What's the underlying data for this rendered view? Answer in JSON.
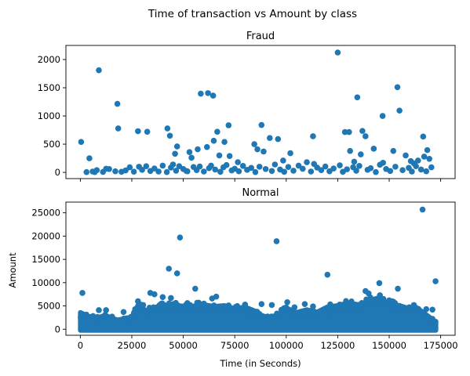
{
  "figure": {
    "suptitle": "Time of transaction vs Amount by class"
  },
  "colors": {
    "marker": "#1f77b4",
    "axes": "#000000",
    "background": "#ffffff"
  },
  "chart_data": [
    {
      "type": "scatter",
      "title": "Fraud",
      "xlabel": "",
      "ylabel": "",
      "xlim": [
        -7000,
        182000
      ],
      "ylim": [
        -110,
        2250
      ],
      "xticks": [
        0,
        25000,
        50000,
        75000,
        100000,
        125000,
        150000,
        175000
      ],
      "xtick_labels_visible": false,
      "yticks": [
        0,
        500,
        1000,
        1500,
        2000
      ],
      "ytick_labels": [
        "0",
        "500",
        "1000",
        "1500",
        "2000"
      ],
      "grid": false,
      "legend": "none",
      "series": [
        {
          "marker": "circle",
          "x": [
            400,
            9000,
            18000,
            18400,
            125000,
            154000,
            134500,
            155000,
            146800,
            58500,
            62000,
            64500,
            42300,
            43500,
            46000,
            66500,
            72000,
            88000,
            92000,
            96000,
            113000,
            137000,
            138500,
            128500,
            130500,
            166500,
            168500,
            32500,
            28000,
            4400,
            70000,
            47000,
            53000,
            61500,
            64800,
            54000,
            57000,
            67500,
            72500,
            84500,
            86000,
            89000,
            102000,
            110000,
            131000,
            136200,
            142500,
            152000,
            158000,
            162000,
            164000,
            167000,
            169500,
            3000,
            6000,
            8000,
            11000,
            14000,
            17000,
            20000,
            22000,
            24000,
            26000,
            28500,
            30000,
            32000,
            34000,
            36000,
            38000,
            40000,
            42000,
            44000,
            46500,
            48000,
            50000,
            52000,
            55000,
            56500,
            58000,
            60000,
            62500,
            63500,
            65500,
            68000,
            69500,
            71000,
            73500,
            75000,
            77000,
            79000,
            81000,
            83000,
            85000,
            87000,
            90000,
            93000,
            94500,
            97000,
            99000,
            101000,
            103500,
            106000,
            108000,
            112000,
            115000,
            117000,
            119000,
            121000,
            123000,
            126000,
            127500,
            129500,
            132500,
            134000,
            135500,
            139500,
            141000,
            143500,
            145500,
            148500,
            150500,
            153000,
            156500,
            159500,
            161000,
            163000,
            165500,
            168000,
            170500,
            7000,
            12500,
            45000,
            51500,
            76500,
            98500,
            113500,
            133000,
            147000,
            160500
          ],
          "y": [
            540,
            1810,
            1215,
            780,
            2125,
            1510,
            1330,
            1095,
            1000,
            1395,
            1405,
            1360,
            780,
            650,
            330,
            720,
            835,
            840,
            610,
            590,
            640,
            735,
            640,
            715,
            715,
            635,
            395,
            720,
            730,
            250,
            540,
            460,
            360,
            450,
            560,
            260,
            410,
            300,
            290,
            500,
            410,
            370,
            340,
            180,
            380,
            320,
            420,
            380,
            300,
            160,
            210,
            280,
            240,
            5,
            15,
            40,
            8,
            60,
            20,
            10,
            35,
            90,
            12,
            100,
            45,
            110,
            25,
            70,
            15,
            120,
            5,
            85,
            30,
            110,
            60,
            20,
            95,
            40,
            105,
            15,
            75,
            120,
            50,
            10,
            90,
            130,
            35,
            65,
            20,
            115,
            45,
            80,
            5,
            100,
            60,
            25,
            140,
            50,
            10,
            95,
            30,
            120,
            65,
            15,
            85,
            40,
            105,
            20,
            70,
            125,
            10,
            55,
            90,
            30,
            115,
            45,
            75,
            5,
            135,
            60,
            25,
            100,
            40,
            80,
            15,
            110,
            50,
            20,
            90,
            5,
            65,
            140,
            25,
            180,
            210,
            150,
            190,
            170,
            200
          ]
        }
      ]
    },
    {
      "type": "scatter",
      "title": "Normal",
      "xlabel": "Time (in Seconds)",
      "ylabel": "Amount",
      "xlim": [
        -7000,
        182000
      ],
      "ylim": [
        -1300,
        27300
      ],
      "xticks": [
        0,
        25000,
        50000,
        75000,
        100000,
        125000,
        150000,
        175000
      ],
      "xtick_labels": [
        "0",
        "25000",
        "50000",
        "75000",
        "100000",
        "125000",
        "150000",
        "175000"
      ],
      "yticks": [
        0,
        5000,
        10000,
        15000,
        20000,
        25000
      ],
      "ytick_labels": [
        "0",
        "5000",
        "10000",
        "15000",
        "20000",
        "25000"
      ],
      "grid": false,
      "legend": "none",
      "series": [
        {
          "marker": "circle",
          "x": [
            166200,
            48400,
            95300,
            43000,
            47000,
            120000,
            172500,
            145200,
            55800,
            154200,
            138500,
            34000,
            36000,
            40000,
            44000,
            64000,
            66000,
            100500,
            109000,
            140000,
            145500,
            150000,
            152000,
            162000,
            1000,
            9000,
            12500,
            21000,
            28000,
            30500,
            52000,
            60000,
            72000,
            80000,
            88000,
            93000,
            104000,
            113000,
            126000,
            133000,
            147000,
            155000,
            168000,
            171000
          ],
          "y": [
            25700,
            19700,
            18900,
            13000,
            12000,
            11700,
            10300,
            9900,
            8700,
            8700,
            8200,
            7800,
            7500,
            6900,
            6700,
            6600,
            7000,
            5800,
            5400,
            7700,
            7300,
            6200,
            5900,
            5200,
            7800,
            4100,
            4100,
            3700,
            6000,
            5200,
            5600,
            5500,
            5100,
            5300,
            5400,
            5200,
            4700,
            4900,
            5300,
            5100,
            5700,
            5000,
            4300,
            4200
          ]
        }
      ],
      "dense_band": {
        "x_range": [
          0,
          172700
        ],
        "upper_envelope": [
          [
            0,
            3600
          ],
          [
            5000,
            2600
          ],
          [
            8000,
            2400
          ],
          [
            12000,
            3000
          ],
          [
            18000,
            2000
          ],
          [
            25000,
            2600
          ],
          [
            28000,
            5200
          ],
          [
            32000,
            4000
          ],
          [
            36000,
            4700
          ],
          [
            42000,
            5200
          ],
          [
            46000,
            5600
          ],
          [
            50000,
            4600
          ],
          [
            55000,
            5000
          ],
          [
            60000,
            5300
          ],
          [
            65000,
            4900
          ],
          [
            70000,
            5100
          ],
          [
            75000,
            4400
          ],
          [
            80000,
            4800
          ],
          [
            85000,
            3900
          ],
          [
            88000,
            2900
          ],
          [
            92000,
            2600
          ],
          [
            96000,
            3100
          ],
          [
            100000,
            4600
          ],
          [
            105000,
            3600
          ],
          [
            110000,
            4200
          ],
          [
            115000,
            3700
          ],
          [
            120000,
            4800
          ],
          [
            125000,
            5100
          ],
          [
            130000,
            5700
          ],
          [
            135000,
            5300
          ],
          [
            140000,
            6100
          ],
          [
            145000,
            6800
          ],
          [
            150000,
            5300
          ],
          [
            155000,
            5100
          ],
          [
            160000,
            4400
          ],
          [
            165000,
            4100
          ],
          [
            169000,
            2800
          ],
          [
            172700,
            1600
          ]
        ]
      }
    }
  ]
}
